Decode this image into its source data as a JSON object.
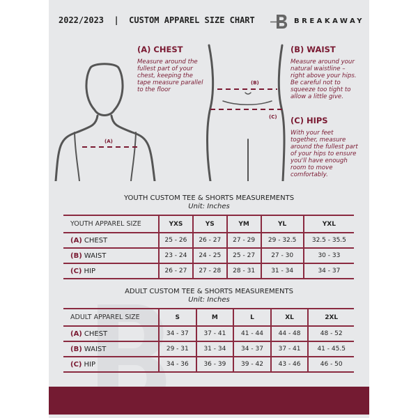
{
  "header": {
    "title": "2022/2023  |  CUSTOM APPAREL SIZE CHART",
    "brand": "BREAKAWAY",
    "brand_mark": "B"
  },
  "guides": {
    "chest": {
      "title": "(A) CHEST",
      "desc": "Measure around the fullest part of your chest, keeping the tape measure parallel to the floor",
      "marker": "(A)"
    },
    "waist": {
      "title": "(B) WAIST",
      "desc": "Measure around your natural waistline – right above your hips. Be careful not to squeeze too tight to allow a little give.",
      "marker": "(B)"
    },
    "hips": {
      "title": "(C) HIPS",
      "desc": "With your feet together, measure around the fullest part of your hips to ensure you'll have enough room to move comfortably.",
      "marker": "(C)"
    }
  },
  "youth": {
    "title": "YOUTH CUSTOM TEE & SHORTS MEASUREMENTS",
    "unit": "Unit: Inches",
    "header": "YOUTH APPAREL SIZE",
    "sizes": [
      "YXS",
      "YS",
      "YM",
      "YL",
      "YXL"
    ],
    "rows": [
      {
        "letter": "(A)",
        "name": "CHEST",
        "values": [
          "25 - 26",
          "26 - 27",
          "27 - 29",
          "29 - 32.5",
          "32.5 - 35.5"
        ]
      },
      {
        "letter": "(B)",
        "name": "WAIST",
        "values": [
          "23 - 24",
          "24 - 25",
          "25 - 27",
          "27 - 30",
          "30 - 33"
        ]
      },
      {
        "letter": "(C)",
        "name": "HIP",
        "values": [
          "26 - 27",
          "27 - 28",
          "28 - 31",
          "31 - 34",
          "34 - 37"
        ]
      }
    ]
  },
  "adult": {
    "title": "ADULT CUSTOM TEE & SHORTS MEASUREMENTS",
    "unit": "Unit: Inches",
    "header": "ADULT APPAREL SIZE",
    "sizes": [
      "S",
      "M",
      "L",
      "XL",
      "2XL"
    ],
    "rows": [
      {
        "letter": "(A)",
        "name": "CHEST",
        "values": [
          "34 - 37",
          "37 - 41",
          "41 - 44",
          "44 - 48",
          "48 - 52"
        ]
      },
      {
        "letter": "(B)",
        "name": "WAIST",
        "values": [
          "29 - 31",
          "31 - 34",
          "34 - 37",
          "37 - 41",
          "41 - 45.5"
        ]
      },
      {
        "letter": "(C)",
        "name": "HIP",
        "values": [
          "34 - 36",
          "36 - 39",
          "39 - 42",
          "43 - 46",
          "46 - 50"
        ]
      }
    ]
  },
  "colors": {
    "accent": "#741b32",
    "background": "#e7e8ea"
  }
}
